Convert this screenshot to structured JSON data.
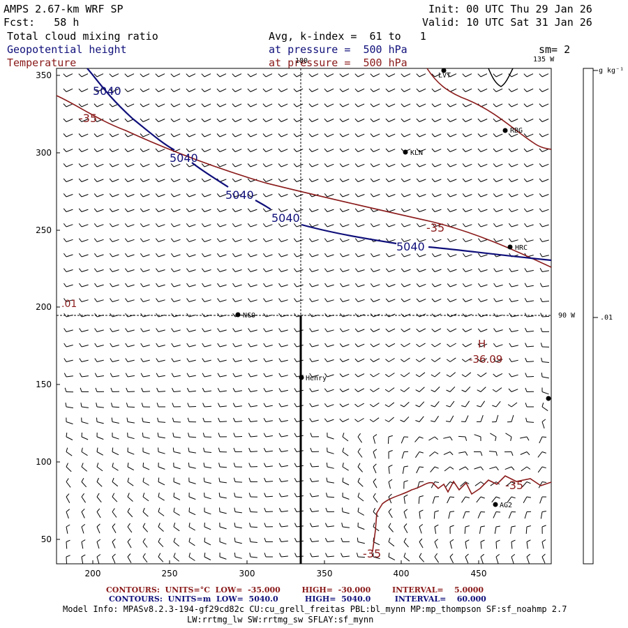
{
  "header": {
    "model": "AMPS 2.67-km WRF SP",
    "forecast": "Fcst:   58 h",
    "init": "Init: 00 UTC Thu 29 Jan 26",
    "valid": "Valid: 10 UTC Sat 31 Jan 26",
    "field1": "Total cloud mixing ratio",
    "field2": "Geopotential height",
    "field3": "Temperature",
    "avg": "Avg, k-index =  61 to   1",
    "pressure1": "at pressure =  500 hPa",
    "pressure2": "at pressure =  500 hPa",
    "sm": "sm= 2"
  },
  "map": {
    "longitude_top": "180",
    "longitude_right_top": "135 W",
    "longitude_right_mid": "90 W",
    "x_ticks": [
      "200",
      "250",
      "300",
      "350",
      "400",
      "450"
    ],
    "y_ticks": [
      "350",
      "300",
      "250",
      "200",
      "150",
      "100",
      "50"
    ],
    "cloud_contour_label": ".01",
    "stations": [
      "LVT",
      "RBG",
      "KLN",
      "HRC",
      "NCO",
      "Henry",
      "AG2"
    ],
    "high_label": "H",
    "high_value": "-36.09",
    "height_labels": [
      "5040",
      "5040",
      "5040",
      "5040",
      "5040"
    ],
    "temp_labels": [
      "-35",
      "-35",
      "-35",
      "-35"
    ],
    "colorbar_unit": "g kg⁻¹",
    "colorbar_value": ".01",
    "colors": {
      "height": "#0f0f7a",
      "temperature": "#8a1a1a"
    }
  },
  "footer": {
    "contours_temp": "CONTOURS:  UNITS=°C  LOW=  -35.000        HIGH=  -30.000        INTERVAL=    5.0000",
    "contours_height": "CONTOURS:  UNITS=m  LOW=  5040.0          HIGH=  5040.0         INTERVAL=    60.000",
    "model_info": "Model Info: MPASv8.2.3-194-gf29cd82c CU:cu_grell_freitas PBL:bl_mynn MP:mp_thompson SF:sf_noahmp 2.7",
    "model_info2": "LW:rrtmg_lw SW:rrtmg_sw SFLAY:sf_mynn"
  }
}
